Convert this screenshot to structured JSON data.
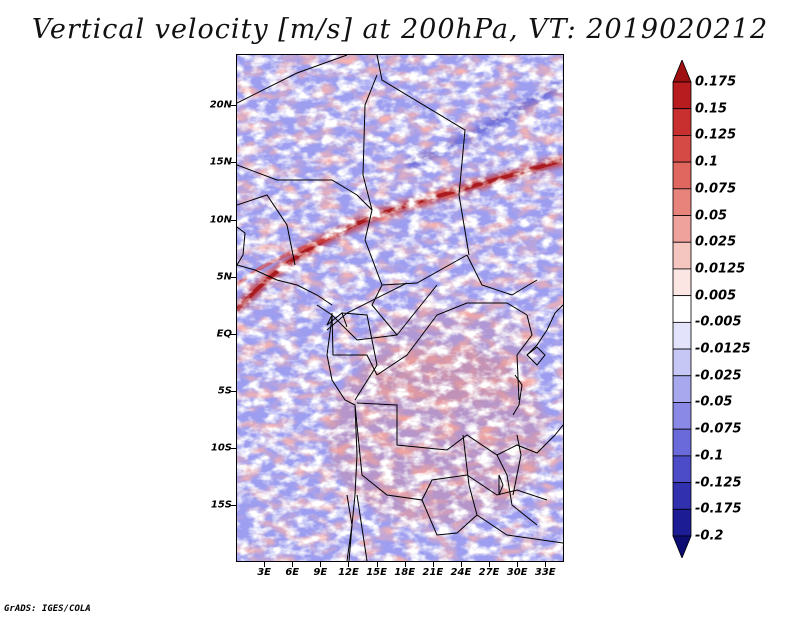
{
  "title": "Vertical velocity [m/s] at 200hPa, VT: 2019020212",
  "map": {
    "lat_labels": [
      "20N",
      "15N",
      "10N",
      "5N",
      "EQ",
      "5S",
      "10S",
      "15S"
    ],
    "lat_values": [
      20,
      15,
      10,
      5,
      0,
      -5,
      -10,
      -15
    ],
    "lon_labels": [
      "3E",
      "6E",
      "9E",
      "12E",
      "15E",
      "18E",
      "21E",
      "24E",
      "27E",
      "30E",
      "33E"
    ],
    "lon_values": [
      3,
      6,
      9,
      12,
      15,
      18,
      21,
      24,
      27,
      30,
      33
    ],
    "lat_range": [
      -20,
      24.5
    ],
    "lon_range": [
      0,
      35
    ]
  },
  "colorbar": {
    "labels": [
      "0.175",
      "0.15",
      "0.125",
      "0.1",
      "0.075",
      "0.05",
      "0.025",
      "0.0125",
      "0.005",
      "-0.005",
      "-0.0125",
      "-0.025",
      "-0.05",
      "-0.075",
      "-0.1",
      "-0.125",
      "-0.175",
      "-0.2"
    ],
    "colors": [
      "#9e0f12",
      "#b81c1f",
      "#c8302f",
      "#d64a45",
      "#e06660",
      "#e8837c",
      "#efa29c",
      "#f5c6c0",
      "#fbe6e3",
      "#ffffff",
      "#e3e3fb",
      "#c7c7f5",
      "#a8a8ef",
      "#8a8ae6",
      "#6a6adb",
      "#4c4cc9",
      "#3131b0",
      "#1c1c94",
      "#0c0c73"
    ]
  },
  "credit": "GrADS: IGES/COLA"
}
